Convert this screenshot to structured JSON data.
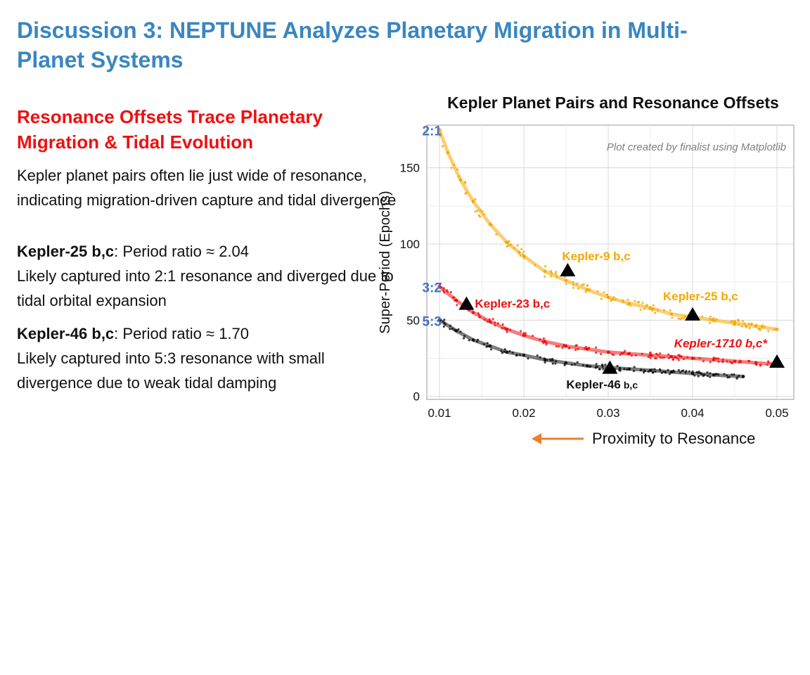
{
  "slide": {
    "title": "Discussion 3: NEPTUNE Analyzes Planetary Migration in Multi-Planet Systems"
  },
  "left": {
    "heading": "Resonance Offsets Trace Planetary Migration & Tidal Evolution",
    "intro": "Kepler planet pairs often lie just wide of resonance, indicating migration-driven capture and tidal divergence",
    "k25_name": "Kepler-25 b,c",
    "k25_ratio": ": Period ratio ≈ 2.04",
    "k25_desc": "Likely captured into 2:1 resonance and diverged due to tidal orbital expansion",
    "k46_name": "Kepler-46 b,c",
    "k46_ratio": ": Period ratio ≈ 1.70",
    "k46_desc": "Likely captured into 5:3 resonance with small divergence due to weak tidal damping"
  },
  "colors": {
    "title": "#3a86c0",
    "heading": "#ee1010",
    "series_2_1": "#f5a800",
    "series_3_2": "#ee1010",
    "series_5_3": "#111111",
    "resonance_label": "#4472c4",
    "arrow": "#ed7d31"
  },
  "chart_data": {
    "type": "scatter",
    "title": "Kepler Planet Pairs and Resonance Offsets",
    "xlabel": "Proximity to Resonance",
    "ylabel": "Super-Period (Epochs)",
    "annotation": "Plot created by finalist using Matplotlib",
    "xlim": [
      0.0085,
      0.052
    ],
    "ylim": [
      -2,
      178
    ],
    "xticks": [
      "0.01",
      "0.02",
      "0.03",
      "0.04",
      "0.05"
    ],
    "yticks": [
      "0",
      "50",
      "100",
      "150"
    ],
    "grid": true,
    "series": [
      {
        "name": "2:1",
        "x": [
          0.01,
          0.011,
          0.0125,
          0.014,
          0.016,
          0.018,
          0.02,
          0.0225,
          0.025,
          0.0275,
          0.03,
          0.0325,
          0.035,
          0.0375,
          0.04,
          0.0425,
          0.045,
          0.0475,
          0.05
        ],
        "y": [
          175,
          160,
          142,
          128,
          113,
          101,
          92,
          82,
          76,
          70,
          65,
          61,
          58,
          54,
          52,
          50,
          48,
          46,
          44
        ]
      },
      {
        "name": "3:2",
        "x": [
          0.01,
          0.012,
          0.014,
          0.016,
          0.018,
          0.02,
          0.0225,
          0.025,
          0.0275,
          0.03,
          0.0325,
          0.035,
          0.0375,
          0.04,
          0.0425,
          0.045,
          0.0475,
          0.05
        ],
        "y": [
          72,
          63,
          55,
          49,
          44,
          40,
          36,
          33,
          31,
          29,
          28,
          27,
          26,
          25,
          24,
          23,
          22,
          21
        ]
      },
      {
        "name": "5:3",
        "x": [
          0.01,
          0.012,
          0.014,
          0.016,
          0.018,
          0.02,
          0.0225,
          0.025,
          0.0275,
          0.03,
          0.0325,
          0.035,
          0.0375,
          0.04,
          0.0425,
          0.046
        ],
        "y": [
          50,
          43,
          37,
          33,
          29,
          27,
          24,
          22,
          20,
          19,
          18,
          17,
          16,
          15,
          14,
          13
        ]
      }
    ],
    "highlighted": [
      {
        "label": "Kepler-9 b,c",
        "x": 0.0252,
        "y": 82,
        "series": "2:1"
      },
      {
        "label": "Kepler-25 b,c",
        "x": 0.04,
        "y": 53,
        "series": "2:1"
      },
      {
        "label": "Kepler-23 b,c",
        "x": 0.0132,
        "y": 60,
        "series": "3:2"
      },
      {
        "label": "Kepler-1710 b,c*",
        "x": 0.05,
        "y": 22,
        "series": "3:2"
      },
      {
        "label": "Kepler-46",
        "label_suffix": "b,c",
        "x": 0.0302,
        "y": 18,
        "series": "5:3"
      }
    ]
  }
}
